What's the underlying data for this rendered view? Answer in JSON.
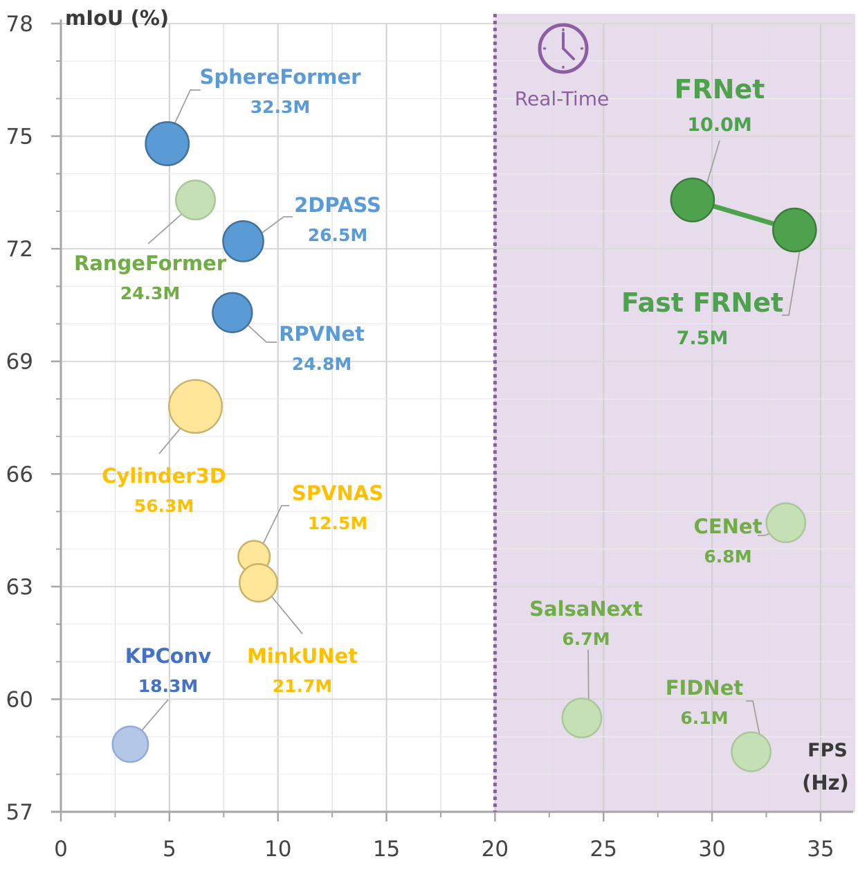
{
  "chart_data": {
    "type": "scatter",
    "title": "",
    "xlabel": "FPS",
    "xlabel_unit": "(Hz)",
    "ylabel": "mIoU (%)",
    "xlim": [
      0,
      36.5
    ],
    "ylim": [
      57,
      78
    ],
    "x_ticks": [
      0,
      5,
      10,
      15,
      20,
      25,
      30,
      35
    ],
    "y_ticks": [
      57,
      60,
      63,
      66,
      69,
      72,
      75,
      78
    ],
    "grid": true,
    "realtime_threshold": 20,
    "realtime_label": "Real-Time",
    "colors": {
      "blue": "#5b9bd5",
      "blue_dark": "#4472c4",
      "blue_light": "#b4c7e7",
      "green": "#4ea24e",
      "green_label": "#70ad47",
      "green_light": "#c5e0b4",
      "yellow": "#ffe699",
      "yellow_label": "#ffc000",
      "purple": "#8e5ea2",
      "shade": "#e6dcec"
    },
    "points": [
      {
        "id": "sphereformer",
        "name": "SphereFormer",
        "params": "32.3M",
        "x": 4.9,
        "y": 74.8,
        "size": 32.3,
        "color": "blue"
      },
      {
        "id": "rangeformer",
        "name": "RangeFormer",
        "params": "24.3M",
        "x": 6.2,
        "y": 73.3,
        "size": 24.3,
        "color": "green_light"
      },
      {
        "id": "2dpass",
        "name": "2DPASS",
        "params": "26.5M",
        "x": 8.4,
        "y": 72.2,
        "size": 26.5,
        "color": "blue"
      },
      {
        "id": "rpvnet",
        "name": "RPVNet",
        "params": "24.8M",
        "x": 7.9,
        "y": 70.3,
        "size": 24.8,
        "color": "blue"
      },
      {
        "id": "cylinder3d",
        "name": "Cylinder3D",
        "params": "56.3M",
        "x": 6.2,
        "y": 67.8,
        "size": 56.3,
        "color": "yellow"
      },
      {
        "id": "spvnas",
        "name": "SPVNAS",
        "params": "12.5M",
        "x": 8.9,
        "y": 63.8,
        "size": 12.5,
        "color": "yellow"
      },
      {
        "id": "minkunet",
        "name": "MinkUNet",
        "params": "21.7M",
        "x": 9.1,
        "y": 63.1,
        "size": 21.7,
        "color": "yellow"
      },
      {
        "id": "kpconv",
        "name": "KPConv",
        "params": "18.3M",
        "x": 3.2,
        "y": 58.8,
        "size": 18.3,
        "color": "blue_light"
      },
      {
        "id": "frnet",
        "name": "FRNet",
        "params": "10.0M",
        "x": 29.1,
        "y": 73.3,
        "size": 32,
        "color": "green"
      },
      {
        "id": "fast-frnet",
        "name": "Fast FRNet",
        "params": "7.5M",
        "x": 33.8,
        "y": 72.5,
        "size": 32,
        "color": "green"
      },
      {
        "id": "cenet",
        "name": "CENet",
        "params": "6.8M",
        "x": 33.4,
        "y": 64.7,
        "size": 24,
        "color": "green_light"
      },
      {
        "id": "salsanext",
        "name": "SalsaNext",
        "params": "6.7M",
        "x": 24.0,
        "y": 59.5,
        "size": 24,
        "color": "green_light"
      },
      {
        "id": "fidnet",
        "name": "FIDNet",
        "params": "6.1M",
        "x": 31.8,
        "y": 58.6,
        "size": 24,
        "color": "green_light"
      }
    ],
    "connectors": [
      [
        "frnet",
        "fast-frnet"
      ]
    ]
  }
}
